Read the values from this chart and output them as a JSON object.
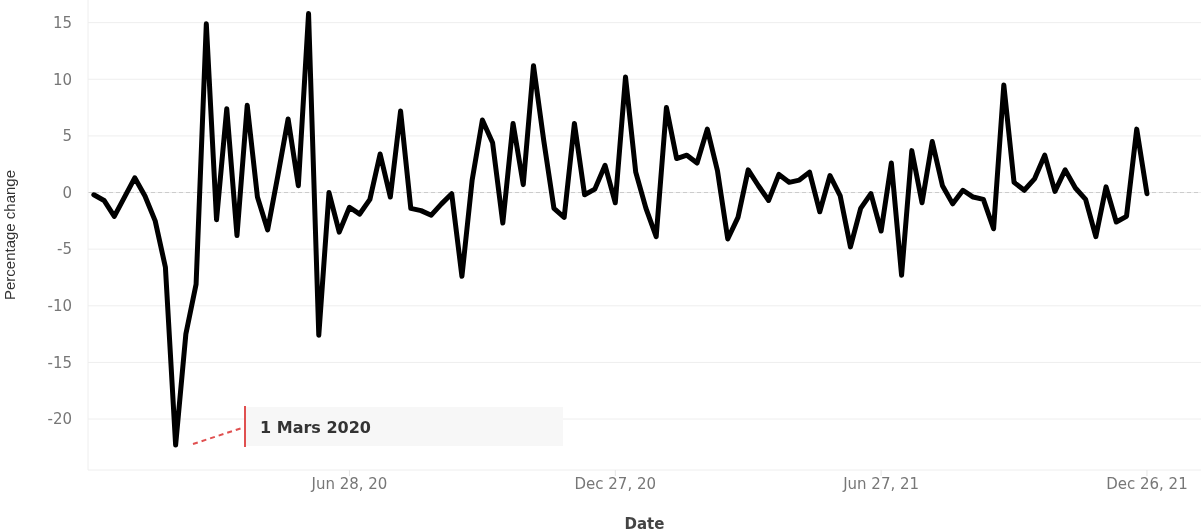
{
  "chart_data": {
    "type": "line",
    "xlabel": "Date",
    "ylabel": "Percentage change",
    "x": [
      "2020-01-05",
      "2020-01-12",
      "2020-01-19",
      "2020-01-26",
      "2020-02-02",
      "2020-02-09",
      "2020-02-16",
      "2020-02-23",
      "2020-03-01",
      "2020-03-08",
      "2020-03-15",
      "2020-03-22",
      "2020-03-29",
      "2020-04-05",
      "2020-04-12",
      "2020-04-19",
      "2020-04-26",
      "2020-05-03",
      "2020-05-10",
      "2020-05-17",
      "2020-05-24",
      "2020-05-31",
      "2020-06-07",
      "2020-06-14",
      "2020-06-21",
      "2020-06-28",
      "2020-07-05",
      "2020-07-12",
      "2020-07-19",
      "2020-07-26",
      "2020-08-02",
      "2020-08-09",
      "2020-08-16",
      "2020-08-23",
      "2020-08-30",
      "2020-09-06",
      "2020-09-13",
      "2020-09-20",
      "2020-09-27",
      "2020-10-04",
      "2020-10-11",
      "2020-10-18",
      "2020-10-25",
      "2020-11-01",
      "2020-11-08",
      "2020-11-15",
      "2020-11-22",
      "2020-11-29",
      "2020-12-06",
      "2020-12-13",
      "2020-12-20",
      "2020-12-27",
      "2021-01-03",
      "2021-01-10",
      "2021-01-17",
      "2021-01-24",
      "2021-01-31",
      "2021-02-07",
      "2021-02-14",
      "2021-02-21",
      "2021-02-28",
      "2021-03-07",
      "2021-03-14",
      "2021-03-21",
      "2021-03-28",
      "2021-04-04",
      "2021-04-11",
      "2021-04-18",
      "2021-04-25",
      "2021-05-02",
      "2021-05-09",
      "2021-05-16",
      "2021-05-23",
      "2021-05-30",
      "2021-06-06",
      "2021-06-13",
      "2021-06-20",
      "2021-06-27",
      "2021-07-04",
      "2021-07-11",
      "2021-07-18",
      "2021-07-25",
      "2021-08-01",
      "2021-08-08",
      "2021-08-15",
      "2021-08-22",
      "2021-08-29",
      "2021-09-05",
      "2021-09-12",
      "2021-09-19",
      "2021-09-26",
      "2021-10-03",
      "2021-10-10",
      "2021-10-17",
      "2021-10-24",
      "2021-10-31",
      "2021-11-07",
      "2021-11-14",
      "2021-11-21",
      "2021-11-28",
      "2021-12-05",
      "2021-12-12",
      "2021-12-19",
      "2021-12-26"
    ],
    "series": [
      {
        "color": "#000000",
        "values": [
          -0.2,
          -0.7,
          -2.1,
          -0.4,
          1.3,
          -0.3,
          -2.5,
          -6.6,
          -22.3,
          -12.5,
          -8.1,
          14.9,
          -2.4,
          7.4,
          -3.8,
          7.7,
          -0.4,
          -3.3,
          1.5,
          6.5,
          0.6,
          15.8,
          -12.6,
          0,
          -3.5,
          -1.3,
          -1.9,
          -0.6,
          3.4,
          -0.4,
          7.2,
          -1.4,
          -1.6,
          -2.0,
          -1.0,
          -0.1,
          -7.4,
          1.1,
          6.4,
          4.4,
          -2.7,
          6.1,
          0.7,
          11.2,
          4.6,
          -1.4,
          -2.2,
          6.1,
          -0.2,
          0.3,
          2.4,
          -0.9,
          10.2,
          1.8,
          -1.4,
          -3.9,
          7.5,
          3.0,
          3.3,
          2.6,
          5.6,
          1.9,
          -4.1,
          -2.2,
          2.0,
          0.6,
          -0.7,
          1.6,
          0.9,
          1.1,
          1.8,
          -1.7,
          1.5,
          -0.3,
          -4.8,
          -1.4,
          -0.1,
          -3.4,
          2.6,
          -7.3,
          3.7,
          -0.9,
          4.5,
          0.6,
          -1.0,
          0.2,
          -0.4,
          -0.6,
          -3.2,
          9.5,
          0.9,
          0.2,
          1.2,
          3.3,
          0.1,
          2.0,
          0.4,
          -0.6,
          -3.9,
          0.5,
          -2.6,
          -2.1,
          5.6,
          -0.1
        ]
      }
    ],
    "xlim": [
      "2020-01-01",
      "2022-02-01"
    ],
    "xticks": [
      {
        "value": "2020-06-28",
        "label": "Jun 28, 20"
      },
      {
        "value": "2020-12-27",
        "label": "Dec 27, 20"
      },
      {
        "value": "2021-06-27",
        "label": "Jun 27, 21"
      },
      {
        "value": "2021-12-26",
        "label": "Dec 26, 21"
      }
    ],
    "ylim": [
      -24.5,
      17
    ],
    "yticks": [
      -20,
      -15,
      -10,
      -5,
      0,
      5,
      10,
      15
    ],
    "grid": "y",
    "marker": "none",
    "line_style": "solid",
    "ref_lines": [
      {
        "axis": "y",
        "value": 0,
        "color": "#cccccc",
        "line_style": "dashed"
      }
    ],
    "annotations": [
      "1 Mars 2020"
    ]
  }
}
